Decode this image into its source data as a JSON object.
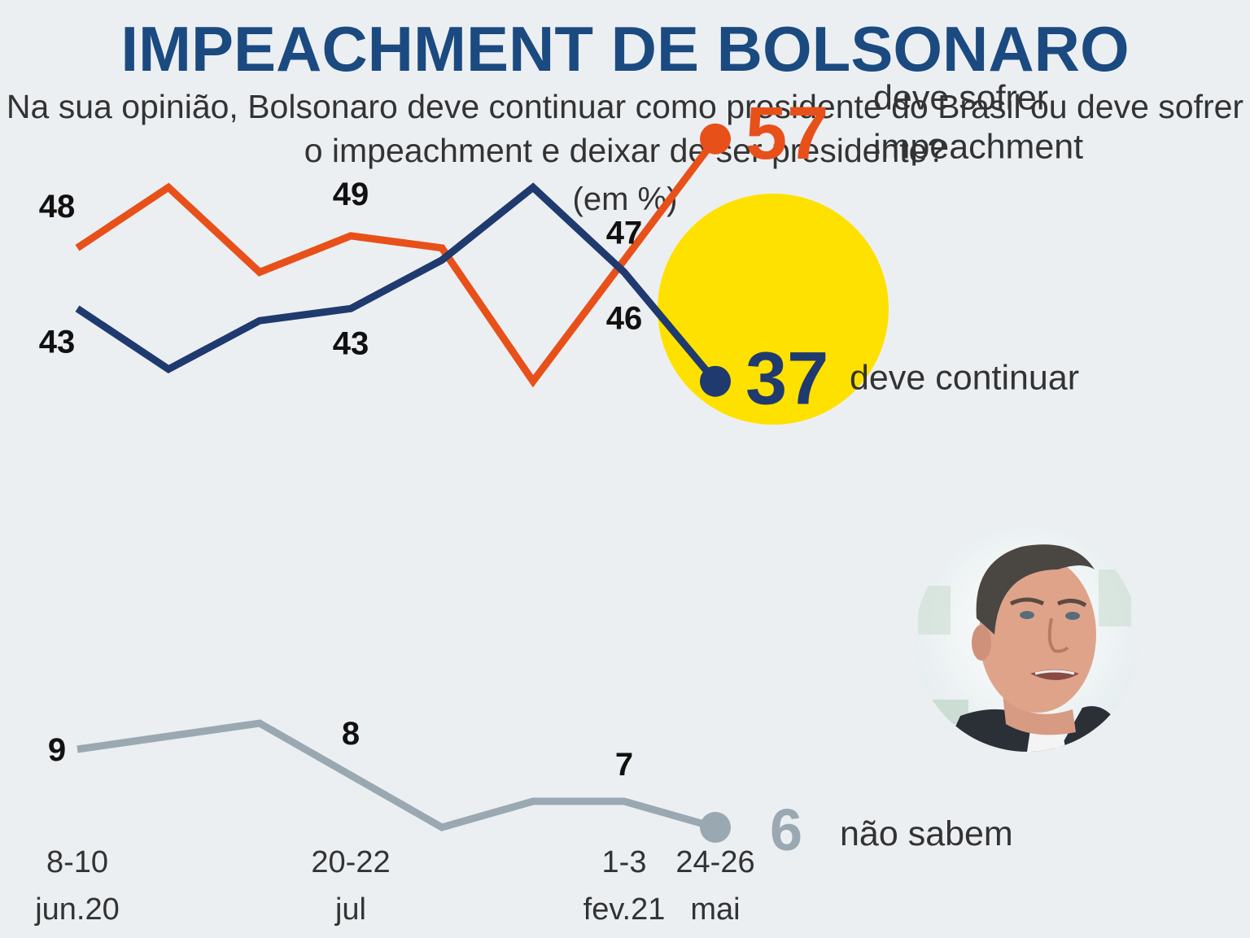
{
  "header": {
    "title": "IMPEACHMENT DE BOLSONARO",
    "subtitle": "Na sua opinião, Bolsonaro deve continuar como presidente do Brasil ou deve sofrer o impeachment e deixar de ser presidente?",
    "unit": "(em %)"
  },
  "colors": {
    "title": "#1b4a80",
    "impeachment": "#e8501a",
    "continuar": "#1f3a6e",
    "nao_sabem": "#9aa8b1",
    "highlight": "#ffe100",
    "background": "#eceff2"
  },
  "chart_data": {
    "type": "line",
    "title": "IMPEACHMENT DE BOLSONARO",
    "x_ticks": [
      {
        "index": 0,
        "line1": "8-10",
        "line2": "jun.20"
      },
      {
        "index": 3,
        "line1": "20-22",
        "line2": "jul"
      },
      {
        "index": 6,
        "line1": "1-3",
        "line2": "fev.21"
      },
      {
        "index": 7,
        "line1": "24-26",
        "line2": "mai"
      }
    ],
    "series": [
      {
        "name": "deve sofrer impeachment",
        "key": "impeachment",
        "values": [
          48,
          53,
          46,
          49,
          48,
          37,
          47,
          57
        ],
        "labeled": [
          0,
          3,
          6
        ],
        "final": "57",
        "final_label_line1": "deve sofrer",
        "final_label_line2": "impeachment"
      },
      {
        "name": "deve continuar",
        "key": "continuar",
        "values": [
          43,
          38,
          42,
          43,
          47,
          53,
          46,
          37
        ],
        "labeled": [
          0,
          3,
          6
        ],
        "final": "37",
        "final_label_line1": "deve continuar",
        "final_label_line2": ""
      },
      {
        "name": "não sabem",
        "key": "nao_sabem",
        "values": [
          9,
          9.5,
          10,
          8,
          6,
          7,
          7,
          6
        ],
        "labeled": [
          0,
          3,
          6
        ],
        "final": "6",
        "final_label_line1": "não sabem",
        "final_label_line2": ""
      }
    ]
  }
}
